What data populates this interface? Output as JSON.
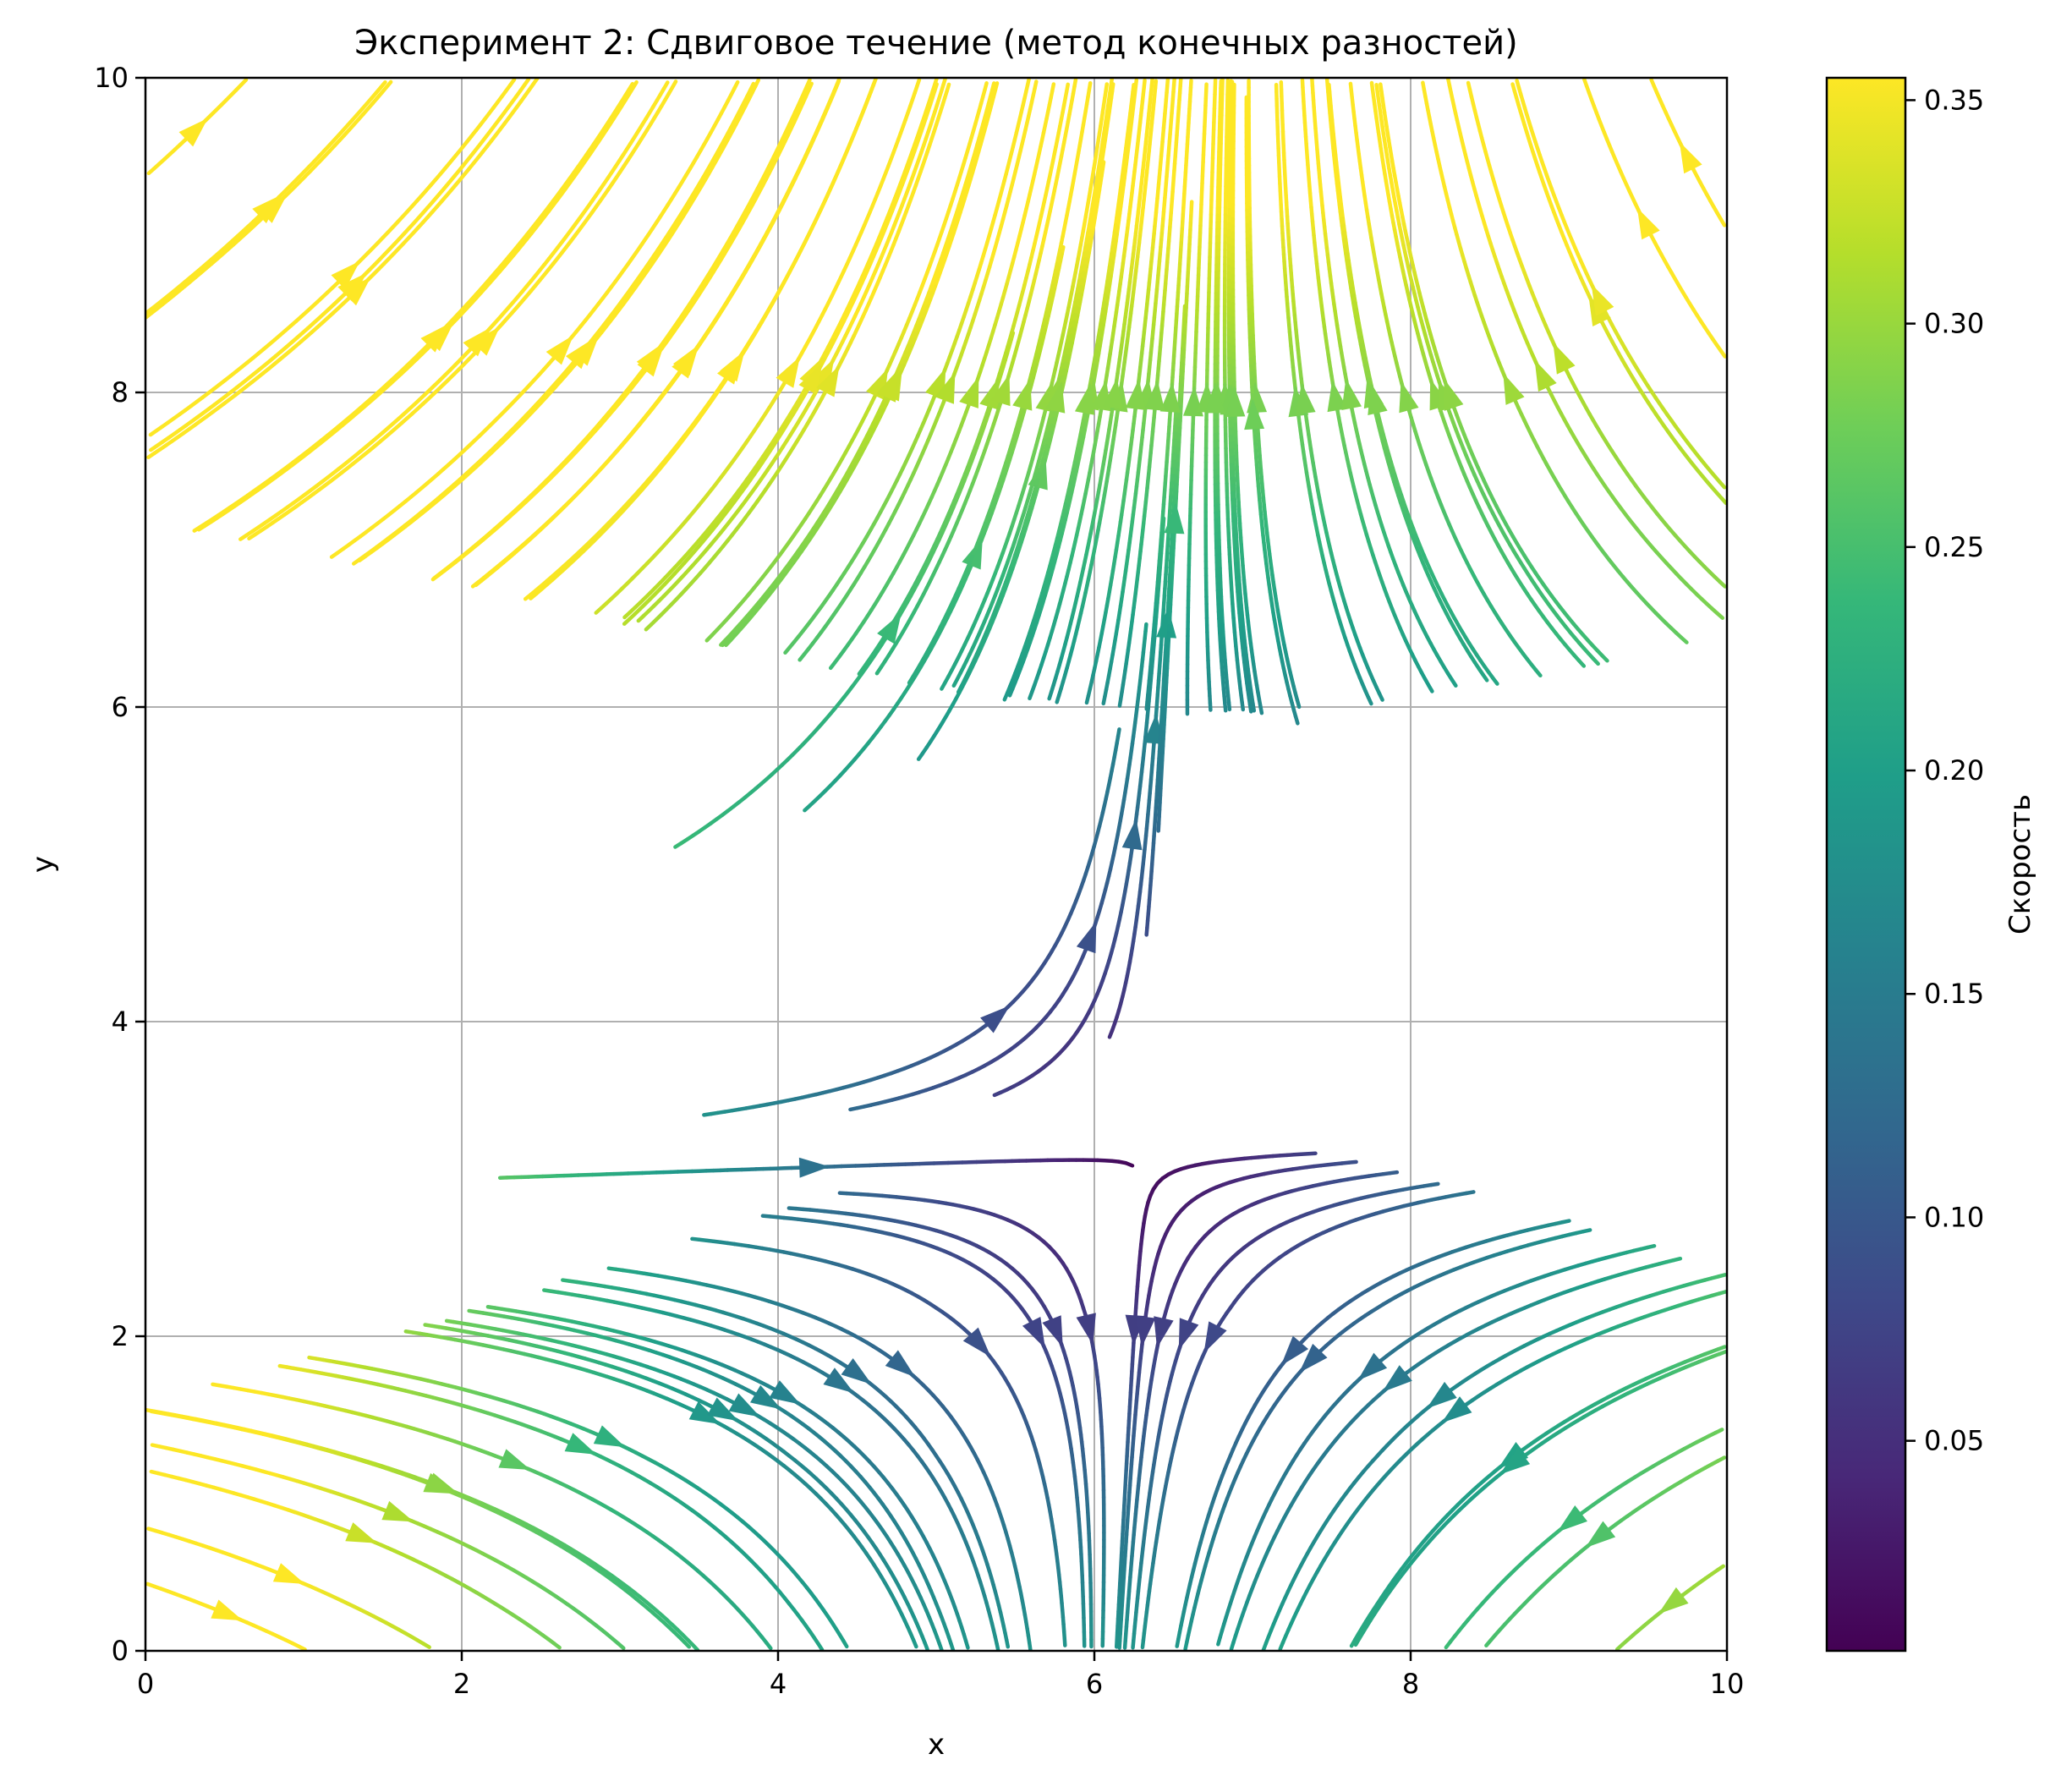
{
  "chart_data": {
    "type": "streamplot",
    "title": "Эксперимент 2: Сдвиговое течение (метод конечных разностей)",
    "xlabel": "x",
    "ylabel": "y",
    "xlim": [
      0,
      10
    ],
    "ylim": [
      0,
      10
    ],
    "xticks": [
      "0",
      "2",
      "4",
      "6",
      "8",
      "10"
    ],
    "yticks": [
      "0",
      "2",
      "4",
      "6",
      "8",
      "10"
    ],
    "grid": true,
    "colorbar": {
      "label": "Скорость",
      "range": [
        0.003,
        0.355
      ],
      "ticks": [
        "0.05",
        "0.10",
        "0.15",
        "0.20",
        "0.25",
        "0.30",
        "0.35"
      ],
      "colormap": "viridis",
      "colormap_stops": [
        "#440154",
        "#482878",
        "#3e4989",
        "#31688e",
        "#26828e",
        "#1f9e89",
        "#35b779",
        "#6ece58",
        "#b5de2b",
        "#fde725"
      ]
    },
    "flow_field": {
      "description_of_pattern": "x-direction shear with a stagnation/saddle point",
      "saddle_point": [
        6.3,
        3.15
      ],
      "converging_axis": "vertical (x = 6.3)",
      "diverging_axis": "horizontal (y = 3.15)"
    }
  }
}
